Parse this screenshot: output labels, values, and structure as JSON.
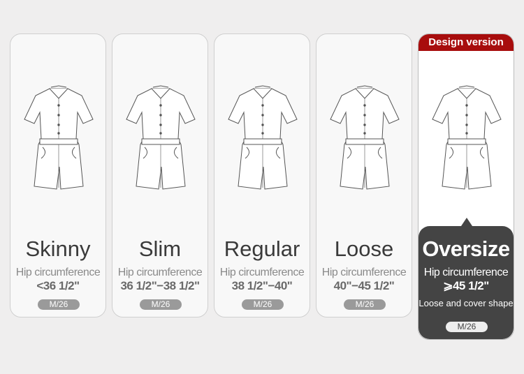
{
  "cards": [
    {
      "name": "Skinny",
      "hip_label": "Hip circumference",
      "value": "<36 1/2\"",
      "size": "M/26"
    },
    {
      "name": "Slim",
      "hip_label": "Hip circumference",
      "value": "36 1/2\"−38 1/2\"",
      "size": "M/26"
    },
    {
      "name": "Regular",
      "hip_label": "Hip circumference",
      "value": "38 1/2\"−40\"",
      "size": "M/26"
    },
    {
      "name": "Loose",
      "hip_label": "Hip circumference",
      "value": "40\"−45 1/2\"",
      "size": "M/26"
    }
  ],
  "featured": {
    "banner": "Design version",
    "name": "Oversize",
    "hip_label": "Hip circumference",
    "value": "⩾45 1/2\"",
    "note": "Loose and cover shape",
    "size": "M/26",
    "accent": "#a80d0d"
  }
}
